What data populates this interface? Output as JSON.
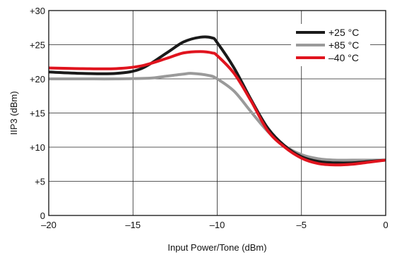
{
  "chart_data": {
    "type": "line",
    "xlabel": "Input Power/Tone (dBm)",
    "ylabel": "IIP3 (dBm)",
    "xlim": [
      -20,
      0
    ],
    "ylim": [
      0,
      30
    ],
    "x_ticks": [
      -20,
      -15,
      -10,
      -5,
      0
    ],
    "x_tick_labels": [
      "–20",
      "–15",
      "–10",
      "–5",
      "0"
    ],
    "y_ticks": [
      0,
      5,
      10,
      15,
      20,
      25,
      30
    ],
    "y_tick_labels": [
      "0",
      "+5",
      "+10",
      "+15",
      "+20",
      "+25",
      "+30"
    ],
    "grid": true,
    "legend_position": "top-right",
    "series": [
      {
        "name": "+25 °C",
        "color": "#1a1a1a",
        "x": [
          -20,
          -18,
          -16,
          -14.5,
          -13,
          -12,
          -11,
          -10.3,
          -10,
          -9,
          -8,
          -7,
          -6,
          -5,
          -4,
          -3,
          -2,
          -1,
          0
        ],
        "y": [
          21.0,
          20.8,
          20.8,
          21.5,
          23.8,
          25.4,
          26.1,
          26.0,
          25.3,
          21.6,
          17.0,
          12.8,
          10.2,
          8.6,
          7.9,
          7.7,
          7.7,
          7.9,
          8.1
        ]
      },
      {
        "name": "+85 °C",
        "color": "#9a9a9a",
        "x": [
          -20,
          -18,
          -16,
          -14,
          -13,
          -12,
          -11.5,
          -10.5,
          -10,
          -9,
          -8,
          -7,
          -6,
          -5,
          -4,
          -3,
          -2,
          -1,
          0
        ],
        "y": [
          20.0,
          20.0,
          20.0,
          20.1,
          20.4,
          20.7,
          20.8,
          20.5,
          20.0,
          18.2,
          15.2,
          12.3,
          10.2,
          8.9,
          8.3,
          8.1,
          8.1,
          8.1,
          8.1
        ]
      },
      {
        "name": "–40 °C",
        "color": "#e0141e",
        "x": [
          -20,
          -18,
          -16,
          -14.5,
          -13,
          -12,
          -11,
          -10.3,
          -10,
          -9,
          -8,
          -7,
          -6,
          -5,
          -4,
          -3,
          -2,
          -1,
          0
        ],
        "y": [
          21.6,
          21.5,
          21.5,
          21.9,
          23.0,
          23.8,
          24.0,
          23.8,
          23.4,
          20.8,
          16.8,
          12.4,
          10.0,
          8.4,
          7.6,
          7.4,
          7.5,
          7.8,
          8.1
        ]
      }
    ]
  }
}
